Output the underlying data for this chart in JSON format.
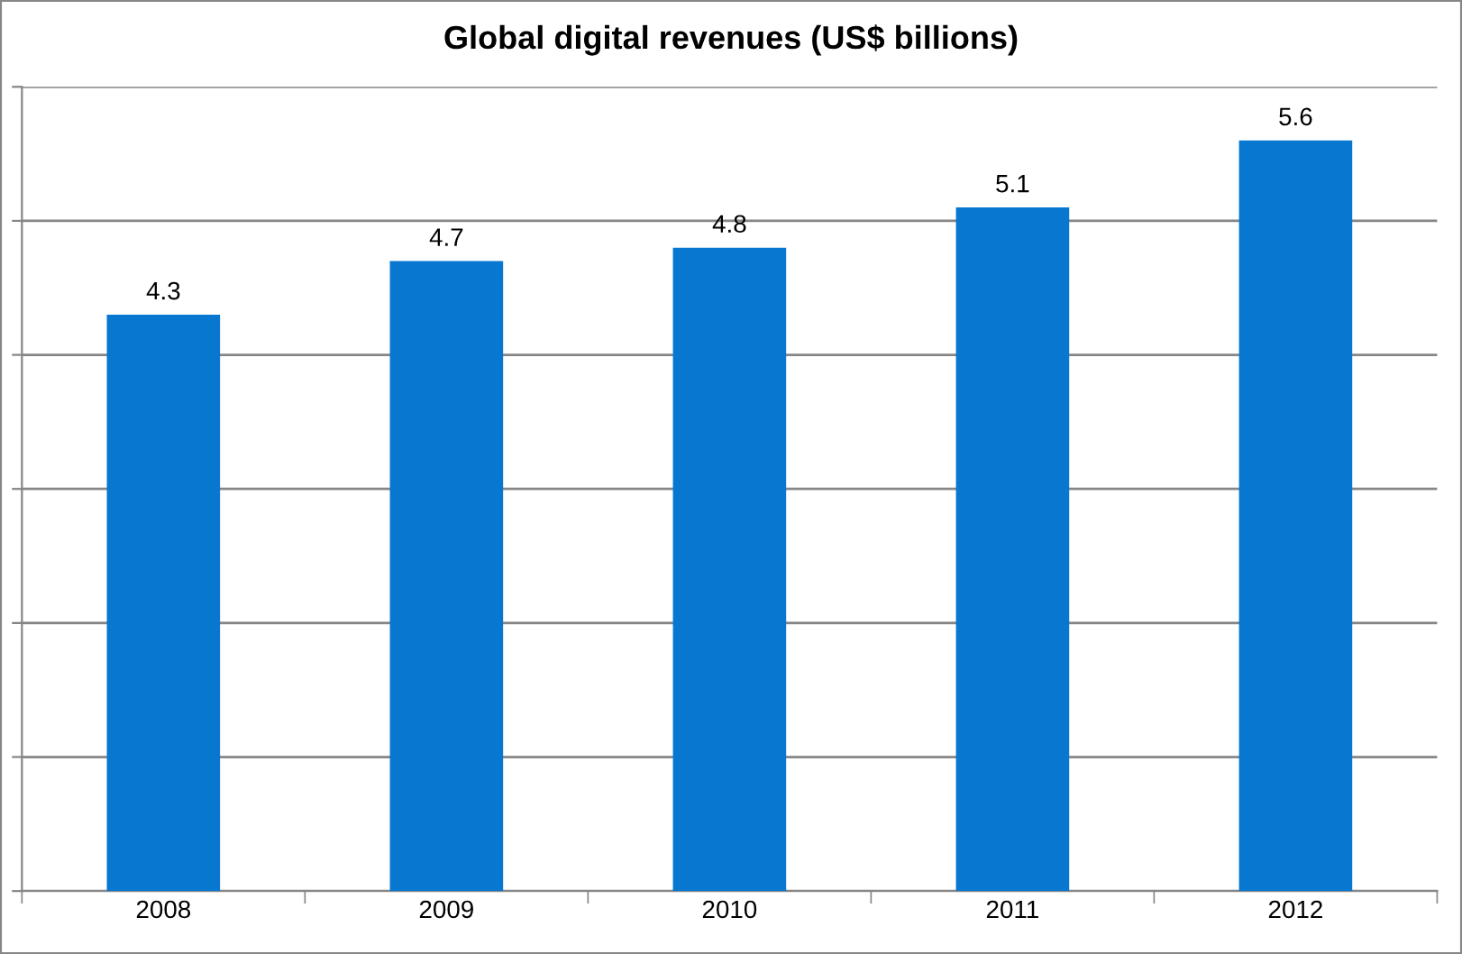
{
  "chart_data": {
    "type": "bar",
    "title": "Global digital revenues (US$ billions)",
    "categories": [
      "2008",
      "2009",
      "2010",
      "2011",
      "2012"
    ],
    "values": [
      4.3,
      4.7,
      4.8,
      5.1,
      5.6
    ],
    "color": "#0777cf",
    "data_labels": true,
    "ylim": [
      0,
      6
    ],
    "yticks": [
      {
        "value": 0,
        "label": null
      },
      {
        "value": 1,
        "label": null
      },
      {
        "value": 2,
        "label": null
      },
      {
        "value": 3,
        "label": null
      },
      {
        "value": 4,
        "label": null
      },
      {
        "value": 5,
        "label": null
      },
      {
        "value": 6,
        "label": null
      }
    ],
    "grid": "y",
    "tick_labels": "x",
    "legend": false
  }
}
